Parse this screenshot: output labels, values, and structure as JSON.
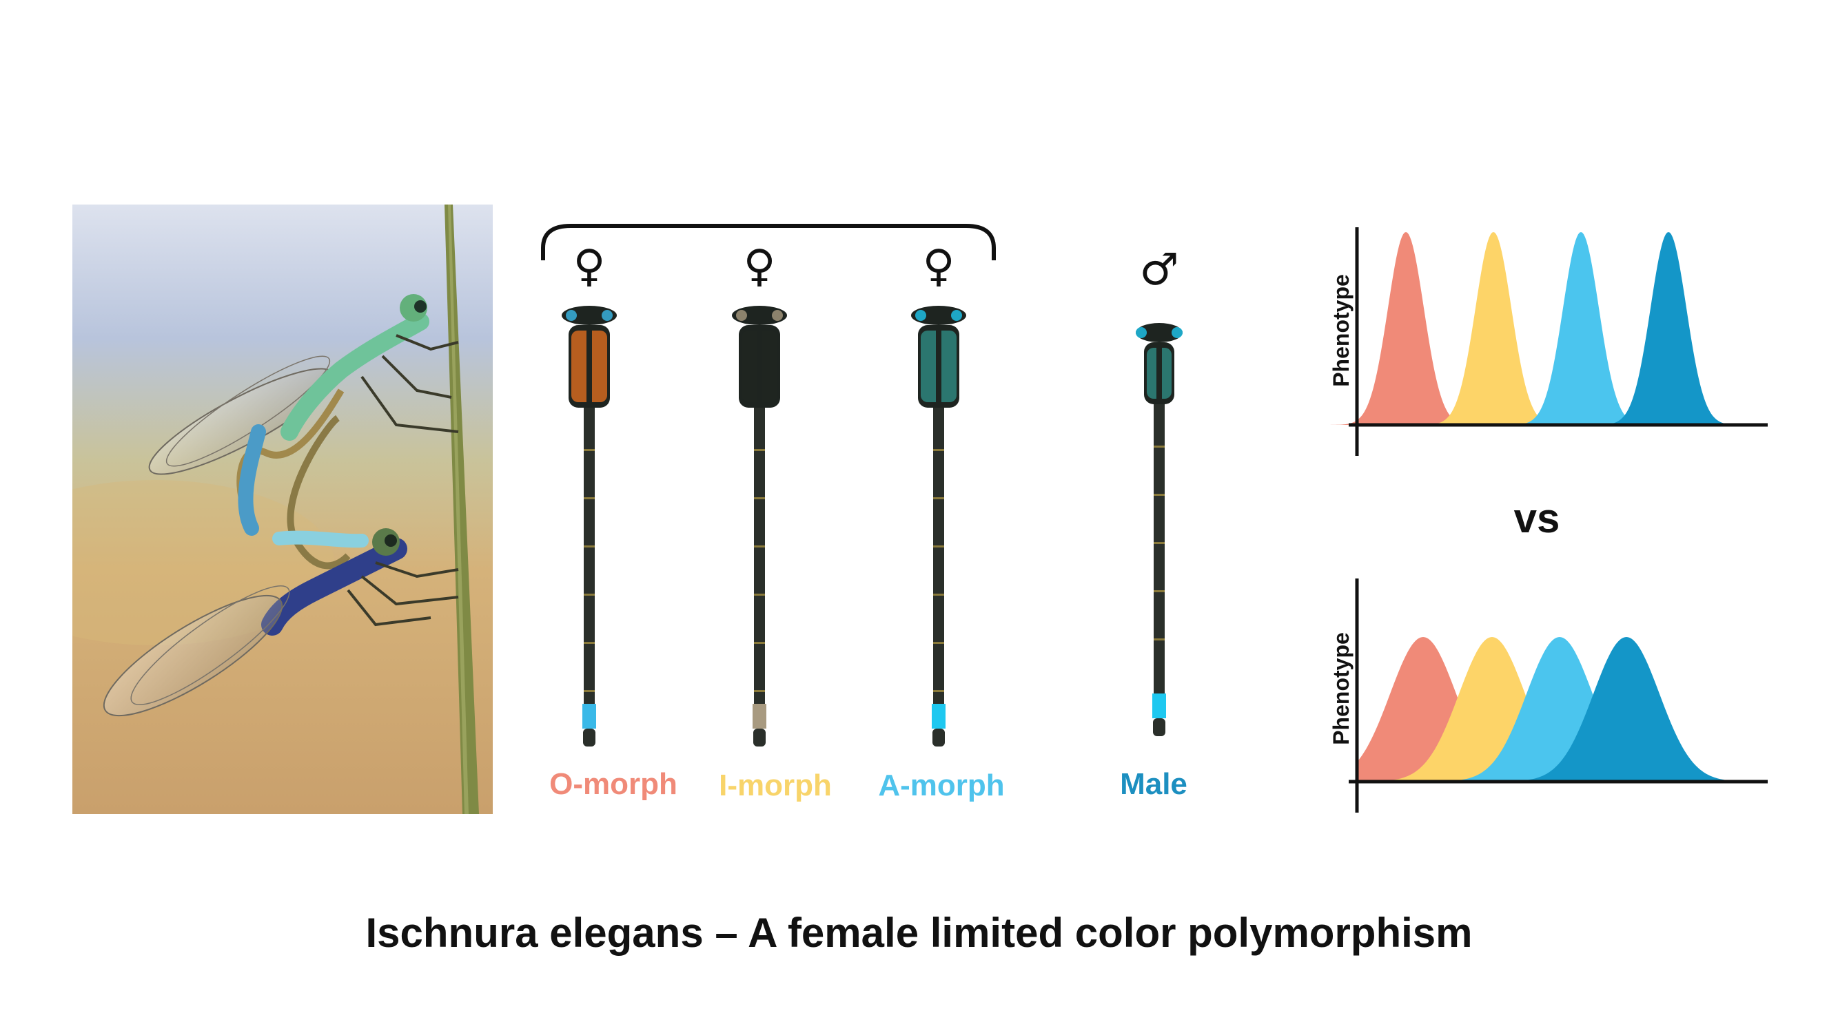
{
  "photo": {
    "alt_icon": "mating-damselflies-photo"
  },
  "females": [
    {
      "symbol": "♀",
      "label": "O-morph",
      "color": "#f08a78",
      "thorax": "#c8651f",
      "tip": "#3ab9e8"
    },
    {
      "symbol": "♀",
      "label": "I-morph",
      "color": "#f8d46a",
      "thorax": "#1f2620",
      "tip": "#a89a80"
    },
    {
      "symbol": "♀",
      "label": "A-morph",
      "color": "#4fc3ec",
      "thorax": "#2c7f78",
      "tip": "#1ec8f0"
    }
  ],
  "male": {
    "symbol": "♂",
    "label": "Male",
    "color": "#1c8fc0",
    "thorax": "#2c7f78",
    "tip": "#1ec8f0"
  },
  "charts": {
    "top": {
      "ylabel": "Phenotype"
    },
    "bottom": {
      "ylabel": "Phenotype"
    },
    "series_colors": [
      "#f08a78",
      "#fdd468",
      "#4bc5ee",
      "#1496c8"
    ]
  },
  "vs_label": "vs",
  "caption": "Ischnura elegans – A female limited color polymorphism"
}
